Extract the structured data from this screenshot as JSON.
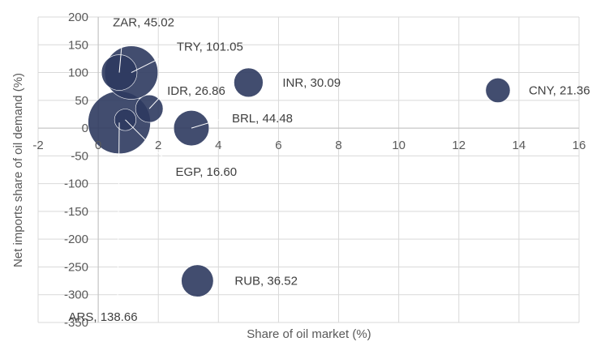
{
  "chart_data": {
    "type": "bubble",
    "xlabel": "Share of oil market (%)",
    "ylabel": "Net imports share of oil demand (%)",
    "xlim": [
      -2,
      16
    ],
    "ylim": [
      -350,
      200
    ],
    "x_ticks": [
      -2,
      0,
      2,
      4,
      6,
      8,
      10,
      12,
      14,
      16
    ],
    "y_ticks": [
      200,
      150,
      100,
      50,
      0,
      -50,
      -100,
      -150,
      -200,
      -250,
      -300,
      -350
    ],
    "x_tick_labels": [
      "-2",
      "0",
      "2",
      "4",
      "6",
      "8",
      "10",
      "12",
      "14",
      "16"
    ],
    "y_tick_labels": [
      "200",
      "150",
      "100",
      "50",
      "0",
      "-50",
      "-100",
      "-150",
      "-200",
      "-250",
      "-300",
      "-350"
    ],
    "grid": true,
    "points": [
      {
        "label": "ARS, 138.66",
        "x": 0.7,
        "y": 10,
        "size": 138.66
      },
      {
        "label": "ZAR, 45.02",
        "x": 0.7,
        "y": 100,
        "size": 45.02
      },
      {
        "label": "TRY, 101.05",
        "x": 1.1,
        "y": 100,
        "size": 101.05
      },
      {
        "label": "IDR, 26.86",
        "x": 1.7,
        "y": 35,
        "size": 26.86
      },
      {
        "label": "EGP, 16.60",
        "x": 0.9,
        "y": 15,
        "size": 16.6
      },
      {
        "label": "BRL, 44.48",
        "x": 3.1,
        "y": 0,
        "size": 44.48
      },
      {
        "label": "INR, 30.09",
        "x": 5.0,
        "y": 82,
        "size": 30.09
      },
      {
        "label": "CNY, 21.36",
        "x": 13.3,
        "y": 68,
        "size": 21.36
      },
      {
        "label": "RUB, 36.52",
        "x": 3.3,
        "y": -275,
        "size": 36.52
      }
    ]
  },
  "colors": {
    "bubble": "#2d3a5f",
    "grid": "#d9d9d9",
    "text": "#595959"
  }
}
